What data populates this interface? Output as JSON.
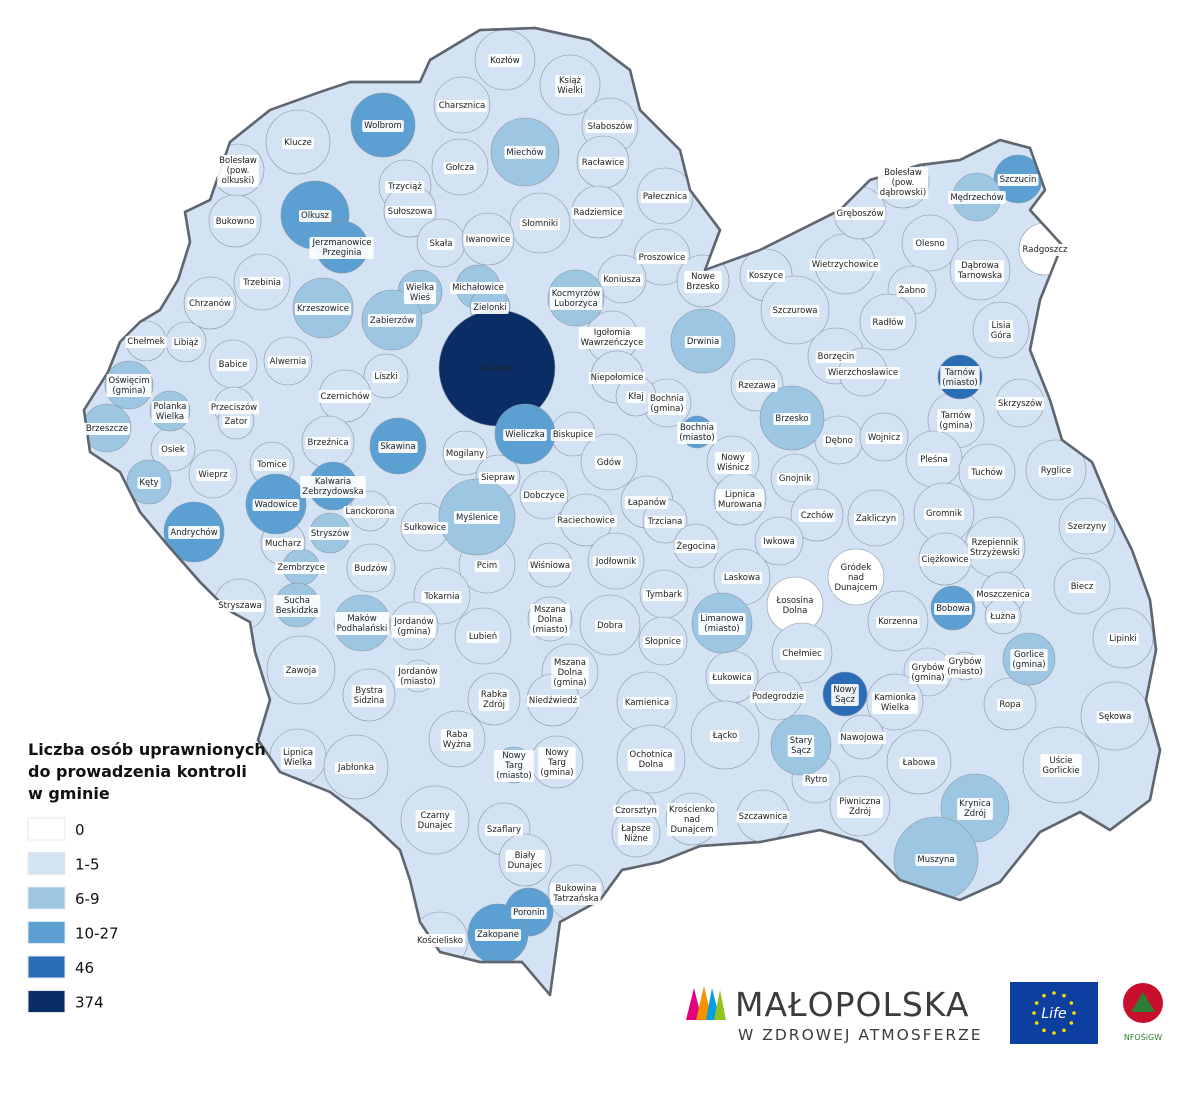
{
  "legend": {
    "title": "Liczba osób uprawnionych\ndo prowadzenia kontroli\nw gminie",
    "classes": [
      {
        "label": "0",
        "color": "#ffffff"
      },
      {
        "label": "1-5",
        "color": "#d3e3f3"
      },
      {
        "label": "6-9",
        "color": "#9dc6e3"
      },
      {
        "label": "10-27",
        "color": "#5b9fd3"
      },
      {
        "label": "46",
        "color": "#2a6db6"
      },
      {
        "label": "374",
        "color": "#0b2d66"
      }
    ]
  },
  "logos": {
    "brand": "MAŁOPOLSKA",
    "tagline": "W ZDROWEJ ATMOSFERZE",
    "life": "Life",
    "fund": "NFOŚiGW"
  },
  "gminas": [
    {
      "name": "Kozłów",
      "class": "1-5"
    },
    {
      "name": "Książ\nWielki",
      "class": "1-5"
    },
    {
      "name": "Charsznica",
      "class": "1-5"
    },
    {
      "name": "Wolbrom",
      "class": "10-27"
    },
    {
      "name": "Klucze",
      "class": "1-5"
    },
    {
      "name": "Słaboszów",
      "class": "1-5"
    },
    {
      "name": "Miechów",
      "class": "6-9"
    },
    {
      "name": "Bolesław\n(pow.\nolkuski)",
      "class": "1-5"
    },
    {
      "name": "Gołcza",
      "class": "1-5"
    },
    {
      "name": "Racławice",
      "class": "1-5"
    },
    {
      "name": "Trzyciąż",
      "class": "1-5"
    },
    {
      "name": "Olkusz",
      "class": "10-27"
    },
    {
      "name": "Sułoszowa",
      "class": "1-5"
    },
    {
      "name": "Pałecznica",
      "class": "1-5"
    },
    {
      "name": "Bukowno",
      "class": "1-5"
    },
    {
      "name": "Słomniki",
      "class": "1-5"
    },
    {
      "name": "Radziemice",
      "class": "1-5"
    },
    {
      "name": "Skała",
      "class": "1-5"
    },
    {
      "name": "Iwanowice",
      "class": "1-5"
    },
    {
      "name": "Jerzmanowice\nPrzeginia",
      "class": "10-27"
    },
    {
      "name": "Proszowice",
      "class": "1-5"
    },
    {
      "name": "Trzebinia",
      "class": "1-5"
    },
    {
      "name": "Koniusza",
      "class": "1-5"
    },
    {
      "name": "Nowe\nBrzesko",
      "class": "1-5"
    },
    {
      "name": "Koszyce",
      "class": "1-5"
    },
    {
      "name": "Wielka\nWieś",
      "class": "6-9"
    },
    {
      "name": "Michałowice",
      "class": "6-9"
    },
    {
      "name": "Kocmyrzów\nLuborzyca",
      "class": "6-9"
    },
    {
      "name": "Chrzanów",
      "class": "1-5"
    },
    {
      "name": "Krzeszowice",
      "class": "6-9"
    },
    {
      "name": "Zielonki",
      "class": "6-9"
    },
    {
      "name": "Zabierzów",
      "class": "6-9"
    },
    {
      "name": "Igołomia\nWawrzeńczyce",
      "class": "1-5"
    },
    {
      "name": "Chełmek",
      "class": "1-5"
    },
    {
      "name": "Libiąż",
      "class": "1-5"
    },
    {
      "name": "Babice",
      "class": "1-5"
    },
    {
      "name": "Alwernia",
      "class": "1-5"
    },
    {
      "name": "Liszki",
      "class": "1-5"
    },
    {
      "name": "Kraków",
      "class": "374"
    },
    {
      "name": "Niepołomice",
      "class": "1-5"
    },
    {
      "name": "Drwinia",
      "class": "6-9"
    },
    {
      "name": "Szczurowa",
      "class": "1-5"
    },
    {
      "name": "Wietrzychowice",
      "class": "1-5"
    },
    {
      "name": "Gręboszów",
      "class": "1-5"
    },
    {
      "name": "Bolesław\n(pow.\ndąbrowski)",
      "class": "1-5"
    },
    {
      "name": "Szczucin",
      "class": "10-27"
    },
    {
      "name": "Mędrzechów",
      "class": "6-9"
    },
    {
      "name": "Radgoszcz",
      "class": "0"
    },
    {
      "name": "Olesno",
      "class": "1-5"
    },
    {
      "name": "Dąbrowa\nTarnowska",
      "class": "1-5"
    },
    {
      "name": "Żabno",
      "class": "1-5"
    },
    {
      "name": "Radłów",
      "class": "1-5"
    },
    {
      "name": "Lisia\nGóra",
      "class": "1-5"
    },
    {
      "name": "Borzęcin",
      "class": "1-5"
    },
    {
      "name": "Wierzchosławice",
      "class": "1-5"
    },
    {
      "name": "Tarnów\n(miasto)",
      "class": "46"
    },
    {
      "name": "Tarnów\n(gmina)",
      "class": "1-5"
    },
    {
      "name": "Skrzyszów",
      "class": "1-5"
    },
    {
      "name": "Rzezawa",
      "class": "1-5"
    },
    {
      "name": "Bochnia\n(gmina)",
      "class": "1-5"
    },
    {
      "name": "Bochnia\n(miasto)",
      "class": "10-27"
    },
    {
      "name": "Kłaj",
      "class": "1-5"
    },
    {
      "name": "Oświęcim\n(gmina)",
      "class": "6-9"
    },
    {
      "name": "Polanka\nWielka",
      "class": "6-9"
    },
    {
      "name": "Przeciszów",
      "class": "1-5"
    },
    {
      "name": "Zator",
      "class": "1-5"
    },
    {
      "name": "Czernichów",
      "class": "1-5"
    },
    {
      "name": "Brzeszcze",
      "class": "6-9"
    },
    {
      "name": "Osiek",
      "class": "1-5"
    },
    {
      "name": "Brzeźnica",
      "class": "1-5"
    },
    {
      "name": "Skawina",
      "class": "10-27"
    },
    {
      "name": "Wieliczka",
      "class": "10-27"
    },
    {
      "name": "Biskupice",
      "class": "1-5"
    },
    {
      "name": "Brzesko",
      "class": "6-9"
    },
    {
      "name": "Dębno",
      "class": "1-5"
    },
    {
      "name": "Wojnicz",
      "class": "1-5"
    },
    {
      "name": "Mogilany",
      "class": "1-5"
    },
    {
      "name": "Wieprz",
      "class": "1-5"
    },
    {
      "name": "Tomice",
      "class": "1-5"
    },
    {
      "name": "Kalwaria\nZebrzydowska",
      "class": "10-27"
    },
    {
      "name": "Siepraw",
      "class": "1-5"
    },
    {
      "name": "Gdów",
      "class": "1-5"
    },
    {
      "name": "Nowy\nWiśnicz",
      "class": "1-5"
    },
    {
      "name": "Gnojnik",
      "class": "1-5"
    },
    {
      "name": "Pleśna",
      "class": "1-5"
    },
    {
      "name": "Tuchów",
      "class": "1-5"
    },
    {
      "name": "Ryglice",
      "class": "1-5"
    },
    {
      "name": "Kęty",
      "class": "6-9"
    },
    {
      "name": "Wadowice",
      "class": "10-27"
    },
    {
      "name": "Lanckorona",
      "class": "1-5"
    },
    {
      "name": "Dobczyce",
      "class": "1-5"
    },
    {
      "name": "Łapanów",
      "class": "1-5"
    },
    {
      "name": "Lipnica\nMurowana",
      "class": "1-5"
    },
    {
      "name": "Czchów",
      "class": "1-5"
    },
    {
      "name": "Zakliczyn",
      "class": "1-5"
    },
    {
      "name": "Gromnik",
      "class": "1-5"
    },
    {
      "name": "Szerzyny",
      "class": "1-5"
    },
    {
      "name": "Andrychów",
      "class": "10-27"
    },
    {
      "name": "Sułkowice",
      "class": "1-5"
    },
    {
      "name": "Myślenice",
      "class": "6-9"
    },
    {
      "name": "Raciechowice",
      "class": "1-5"
    },
    {
      "name": "Trzciana",
      "class": "1-5"
    },
    {
      "name": "Iwkowa",
      "class": "1-5"
    },
    {
      "name": "Stryszów",
      "class": "6-9"
    },
    {
      "name": "Mucharz",
      "class": "1-5"
    },
    {
      "name": "Żegocina",
      "class": "1-5"
    },
    {
      "name": "Rzepiennik\nStrzyżewski",
      "class": "1-5"
    },
    {
      "name": "Ciężkowice",
      "class": "1-5"
    },
    {
      "name": "Gródek\nnad\nDunajcem",
      "class": "0"
    },
    {
      "name": "Zembrzyce",
      "class": "6-9"
    },
    {
      "name": "Budzów",
      "class": "1-5"
    },
    {
      "name": "Pcim",
      "class": "1-5"
    },
    {
      "name": "Wiśniowa",
      "class": "1-5"
    },
    {
      "name": "Jodłownik",
      "class": "1-5"
    },
    {
      "name": "Laskowa",
      "class": "1-5"
    },
    {
      "name": "Biecz",
      "class": "1-5"
    },
    {
      "name": "Łososina\nDolna",
      "class": "0"
    },
    {
      "name": "Tokarnia",
      "class": "1-5"
    },
    {
      "name": "Tymbark",
      "class": "1-5"
    },
    {
      "name": "Moszczenica",
      "class": "1-5"
    },
    {
      "name": "Stryszawa",
      "class": "1-5"
    },
    {
      "name": "Sucha\nBeskidzka",
      "class": "6-9"
    },
    {
      "name": "Maków\nPodhalański",
      "class": "6-9"
    },
    {
      "name": "Jordanów\n(gmina)",
      "class": "1-5"
    },
    {
      "name": "Mszana\nDolna\n(miasto)",
      "class": "1-5"
    },
    {
      "name": "Dobra",
      "class": "1-5"
    },
    {
      "name": "Bobowa",
      "class": "10-27"
    },
    {
      "name": "Łużna",
      "class": "1-5"
    },
    {
      "name": "Korzenna",
      "class": "1-5"
    },
    {
      "name": "Lubień",
      "class": "1-5"
    },
    {
      "name": "Limanowa\n(miasto)",
      "class": "6-9"
    },
    {
      "name": "Słopnice",
      "class": "1-5"
    },
    {
      "name": "Lipinki",
      "class": "1-5"
    },
    {
      "name": "Gorlice\n(gmina)",
      "class": "6-9"
    },
    {
      "name": "Chełmiec",
      "class": "1-5"
    },
    {
      "name": "Grybów\n(gmina)",
      "class": "1-5"
    },
    {
      "name": "Grybów\n(miasto)",
      "class": "1-5"
    },
    {
      "name": "Zawoja",
      "class": "1-5"
    },
    {
      "name": "Jordanów\n(miasto)",
      "class": "1-5"
    },
    {
      "name": "Mszana\nDolna\n(gmina)",
      "class": "1-5"
    },
    {
      "name": "Łukowica",
      "class": "1-5"
    },
    {
      "name": "Nowy\nSącz",
      "class": "46"
    },
    {
      "name": "Podegrodzie",
      "class": "1-5"
    },
    {
      "name": "Kamionka\nWielka",
      "class": "1-5"
    },
    {
      "name": "Bystra\nSidzina",
      "class": "1-5"
    },
    {
      "name": "Rabka\nZdrój",
      "class": "1-5"
    },
    {
      "name": "Niedźwiedź",
      "class": "1-5"
    },
    {
      "name": "Kamienica",
      "class": "1-5"
    },
    {
      "name": "Ropa",
      "class": "1-5"
    },
    {
      "name": "Sękowa",
      "class": "1-5"
    },
    {
      "name": "Raba\nWyżna",
      "class": "1-5"
    },
    {
      "name": "Łącko",
      "class": "1-5"
    },
    {
      "name": "Stary\nSącz",
      "class": "6-9"
    },
    {
      "name": "Nawojowa",
      "class": "1-5"
    },
    {
      "name": "Lipnica\nWielka",
      "class": "1-5"
    },
    {
      "name": "Jabłonka",
      "class": "1-5"
    },
    {
      "name": "Nowy\nTarg\n(miasto)",
      "class": "6-9"
    },
    {
      "name": "Nowy\nTarg\n(gmina)",
      "class": "1-5"
    },
    {
      "name": "Ochotnica\nDolna",
      "class": "1-5"
    },
    {
      "name": "Łabowa",
      "class": "1-5"
    },
    {
      "name": "Uście\nGorlickie",
      "class": "1-5"
    },
    {
      "name": "Rytro",
      "class": "1-5"
    },
    {
      "name": "Krynica\nZdrój",
      "class": "6-9"
    },
    {
      "name": "Piwniczna\nZdrój",
      "class": "1-5"
    },
    {
      "name": "Czarny\nDunajec",
      "class": "1-5"
    },
    {
      "name": "Krościenko\nnad\nDunajcem",
      "class": "1-5"
    },
    {
      "name": "Czorsztyn",
      "class": "1-5"
    },
    {
      "name": "Łapsze\nNiżne",
      "class": "1-5"
    },
    {
      "name": "Szczawnica",
      "class": "1-5"
    },
    {
      "name": "Szaflary",
      "class": "1-5"
    },
    {
      "name": "Muszyna",
      "class": "6-9"
    },
    {
      "name": "Biały\nDunajec",
      "class": "1-5"
    },
    {
      "name": "Bukowina\nTatrzańska",
      "class": "1-5"
    },
    {
      "name": "Poronin",
      "class": "10-27"
    },
    {
      "name": "Zakopane",
      "class": "10-27"
    },
    {
      "name": "Kościelisko",
      "class": "1-5"
    }
  ]
}
